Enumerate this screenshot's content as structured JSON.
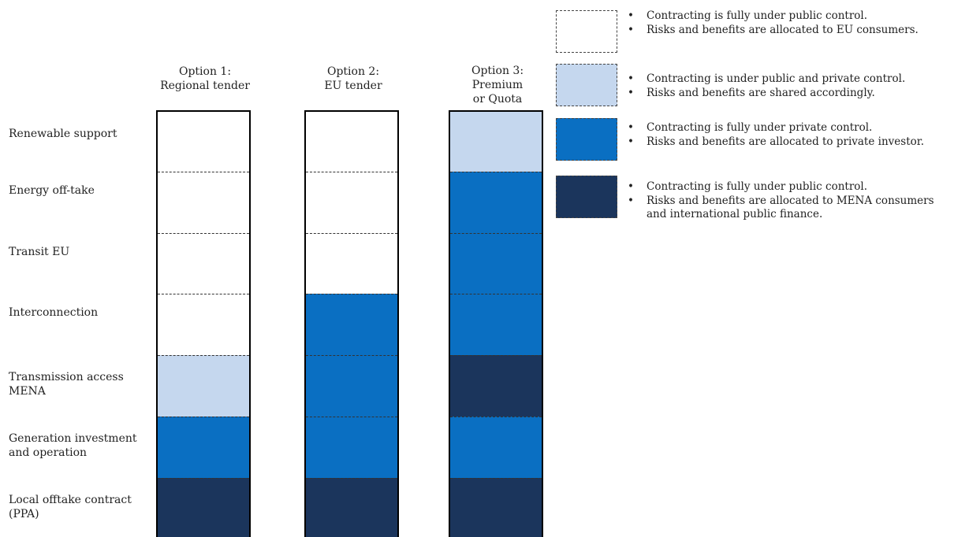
{
  "colors": {
    "white": "#ffffff",
    "light_blue": "#c5d7ee",
    "mid_blue": "#0a6fc2",
    "dark_navy": "#1b355c"
  },
  "rows": [
    {
      "label": "Renewable support"
    },
    {
      "label": "Energy off-take"
    },
    {
      "label": "Transit EU"
    },
    {
      "label": "Interconnection"
    },
    {
      "label": "Transmission access\nMENA"
    },
    {
      "label": "Generation investment\nand operation"
    },
    {
      "label": "Local offtake contract\n(PPA)"
    }
  ],
  "options": [
    {
      "header": "Option 1:\nRegional tender",
      "cells": [
        "white",
        "white",
        "white",
        "white",
        "light_blue",
        "mid_blue",
        "dark_navy"
      ]
    },
    {
      "header": "Option 2:\nEU tender",
      "cells": [
        "white",
        "white",
        "white",
        "mid_blue",
        "mid_blue",
        "mid_blue",
        "dark_navy"
      ]
    },
    {
      "header": "Option 3:\nPremium\nor Quota",
      "cells": [
        "light_blue",
        "mid_blue",
        "mid_blue",
        "mid_blue",
        "dark_navy",
        "mid_blue",
        "dark_navy"
      ]
    }
  ],
  "legend": [
    {
      "color": "white",
      "bullets": [
        "Contracting is fully under public control.",
        "Risks and benefits are allocated to EU consumers."
      ]
    },
    {
      "color": "light_blue",
      "bullets": [
        "Contracting is under public and private control.",
        "Risks and benefits are shared accordingly."
      ]
    },
    {
      "color": "mid_blue",
      "bullets": [
        "Contracting is fully under private control.",
        "Risks and benefits are allocated to private investor."
      ]
    },
    {
      "color": "dark_navy",
      "bullets": [
        "Contracting is fully under public control.",
        "Risks and benefits are allocated to MENA consumers and international public finance."
      ]
    }
  ]
}
